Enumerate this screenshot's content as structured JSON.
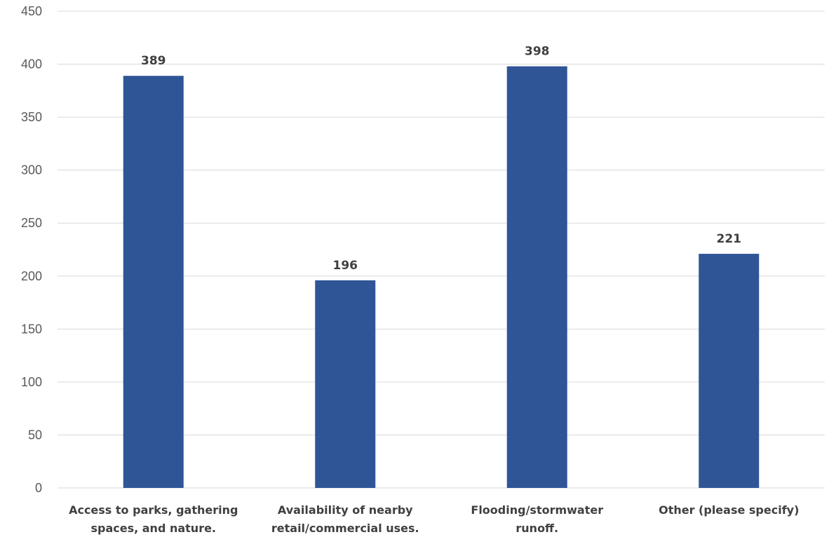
{
  "chart_data": {
    "type": "bar",
    "categories": [
      [
        "Access to parks, gathering",
        "spaces, and nature."
      ],
      [
        "Availability of nearby",
        "retail/commercial uses."
      ],
      [
        "Flooding/stormwater",
        "runoff."
      ],
      [
        "Other (please specify)"
      ]
    ],
    "values": [
      389,
      196,
      398,
      221
    ],
    "data_labels": [
      "389",
      "196",
      "398",
      "221"
    ],
    "ylim": [
      0,
      450
    ],
    "y_ticks": [
      0,
      50,
      100,
      150,
      200,
      250,
      300,
      350,
      400,
      450
    ],
    "grid": true,
    "legend": "none",
    "title": "",
    "xlabel": "",
    "ylabel": "",
    "bar_color": "#2F5597",
    "grid_color": "#D9D9D9"
  }
}
